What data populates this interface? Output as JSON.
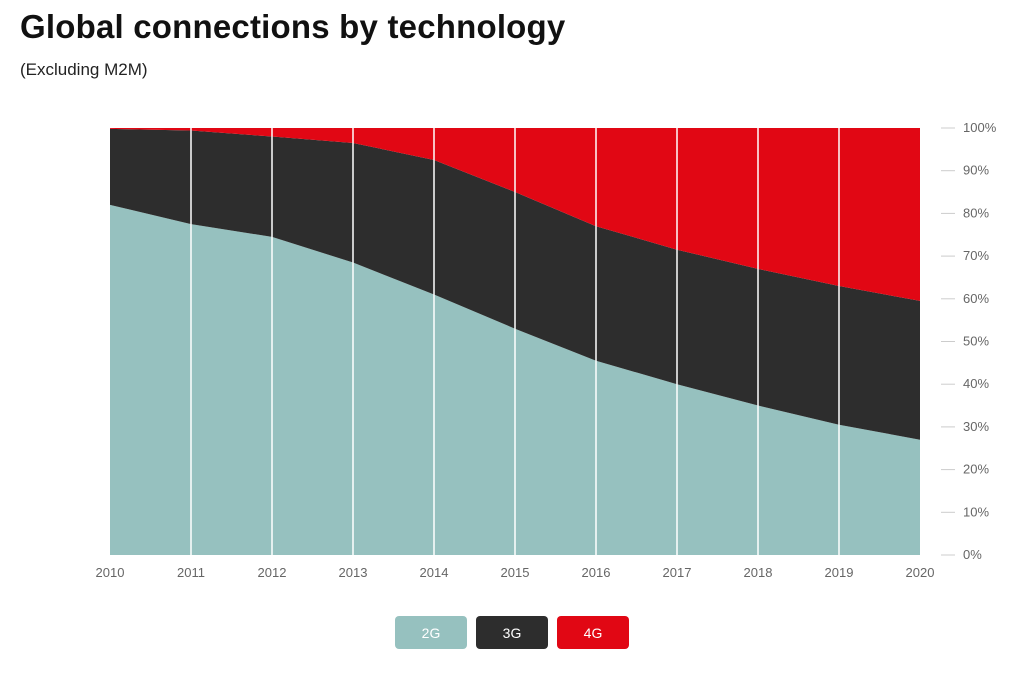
{
  "title": "Global connections by technology",
  "subtitle": "(Excluding M2M)",
  "chart_data": {
    "type": "area",
    "stacked": true,
    "normalized": true,
    "x": [
      "2010",
      "2011",
      "2012",
      "2013",
      "2014",
      "2015",
      "2016",
      "2017",
      "2018",
      "2019",
      "2020"
    ],
    "series": [
      {
        "name": "2G",
        "color": "#96c1bf",
        "values": [
          82,
          77.5,
          74.5,
          68.5,
          61,
          53,
          45.5,
          40,
          35,
          30.5,
          27
        ]
      },
      {
        "name": "3G",
        "color": "#2d2d2d",
        "values": [
          17.8,
          21.9,
          23.5,
          28,
          31.5,
          32,
          31.5,
          31.5,
          32,
          32.5,
          32.5
        ]
      },
      {
        "name": "4G",
        "color": "#e10714",
        "values": [
          0.2,
          0.6,
          2,
          3.5,
          7.5,
          15,
          23,
          28.5,
          33,
          37,
          40.5
        ]
      }
    ],
    "ylim": [
      0,
      100
    ],
    "y_ticks": [
      "0%",
      "10%",
      "20%",
      "30%",
      "40%",
      "50%",
      "60%",
      "70%",
      "80%",
      "90%",
      "100%"
    ],
    "y_axis_position": "right",
    "grid": "vertical",
    "legend_position": "bottom"
  }
}
